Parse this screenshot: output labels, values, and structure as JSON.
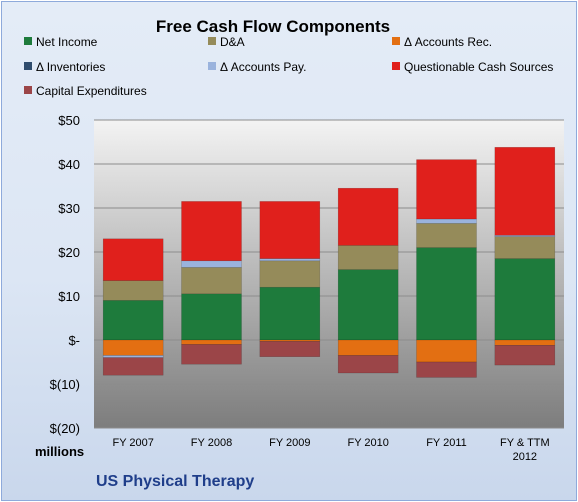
{
  "chart_data": {
    "type": "bar",
    "stacked": true,
    "title": "Free Cash Flow Components",
    "categories": [
      "FY 2007",
      "FY 2008",
      "FY 2009",
      "FY 2010",
      "FY 2011",
      "FY & TTM 2012"
    ],
    "ylim": [
      -20,
      50
    ],
    "yticks": [
      50,
      40,
      30,
      20,
      10,
      0,
      -10,
      -20
    ],
    "ytick_labels": [
      "$50",
      "$40",
      "$30",
      "$20",
      "$10",
      "$-",
      "$(10)",
      "$(20)"
    ],
    "unit_label": "millions",
    "footer": "US Physical Therapy",
    "legend_position": "top",
    "grid": true,
    "series": [
      {
        "name": "Net Income",
        "color": "#1e7b3c",
        "values": [
          9,
          10.5,
          12,
          16,
          21,
          18.5
        ]
      },
      {
        "name": "D&A",
        "color": "#958b5a",
        "values": [
          4.5,
          6,
          6,
          5.5,
          5.5,
          5
        ]
      },
      {
        "name": "Δ Accounts Rec.",
        "color": "#e36f12",
        "values": [
          -3.5,
          -1,
          -0.3,
          -3.5,
          -5,
          -1.2
        ]
      },
      {
        "name": "Δ Inventories",
        "color": "#2f4c6d",
        "values": [
          0,
          0,
          0,
          0,
          0,
          0
        ]
      },
      {
        "name": "Δ Accounts Pay.",
        "color": "#9ab3dd",
        "values": [
          -0.5,
          1.5,
          0.5,
          0,
          1,
          0.3
        ]
      },
      {
        "name": "Questionable Cash Sources",
        "color": "#e0201c",
        "values": [
          9.5,
          13.5,
          13,
          13,
          13.5,
          20
        ]
      },
      {
        "name": "Capital Expenditures",
        "color": "#9b4548",
        "values": [
          -4,
          -4.5,
          -3.5,
          -4,
          -3.5,
          -4.5
        ]
      }
    ]
  }
}
